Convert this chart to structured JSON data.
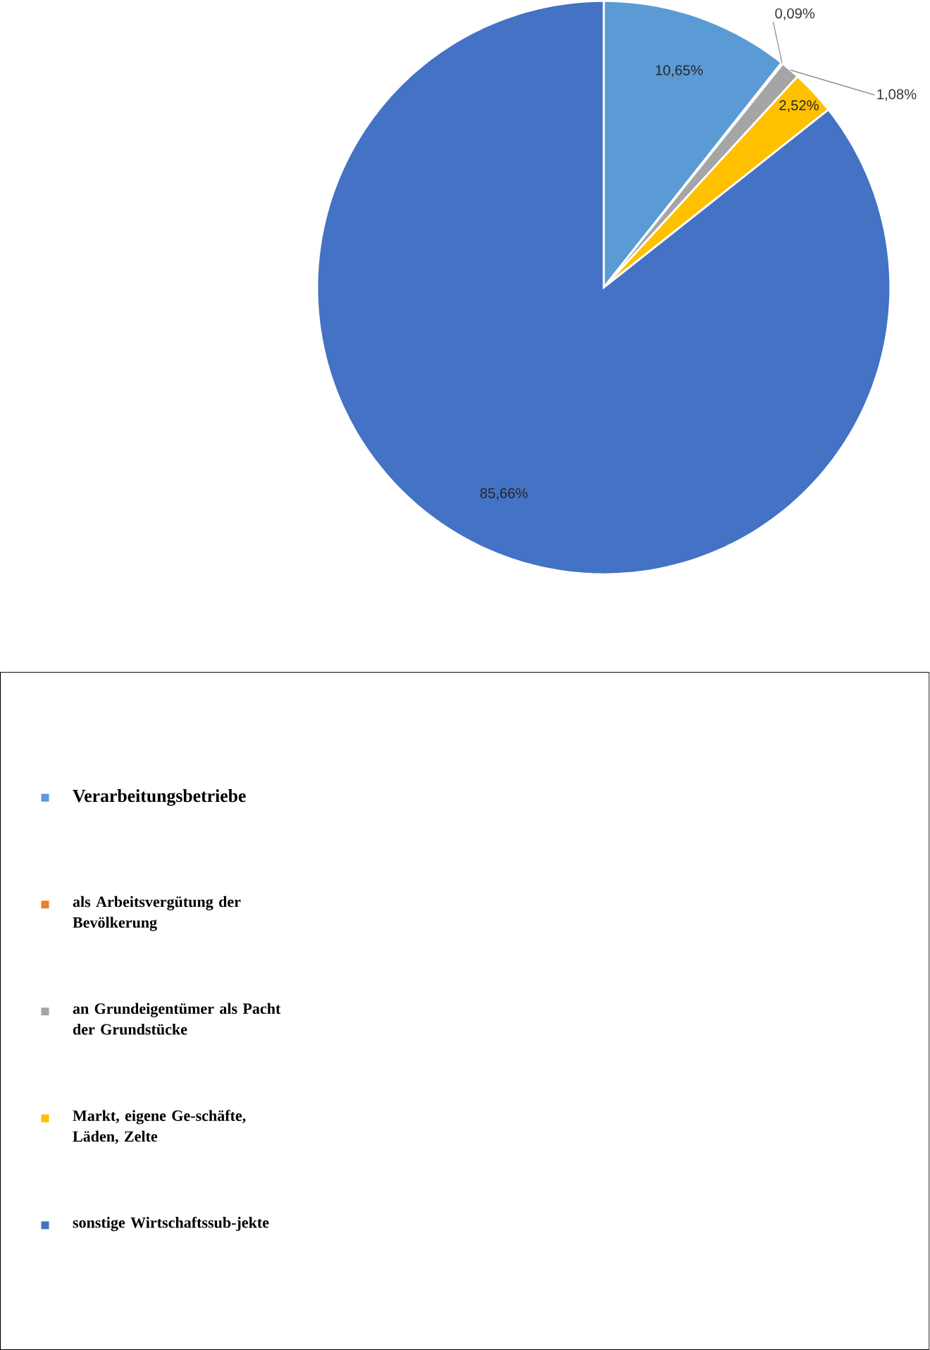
{
  "chart_data": {
    "type": "pie",
    "categories": [
      "Verarbeitungsbetriebe",
      "als Arbeitsvergütung der Bevölkerung",
      "an Grundeigentümer als Pacht der Grundstücke",
      "Markt, eigene Ge-schäfte, Läden, Zelte",
      "sonstige Wirtschaftssub-jekte"
    ],
    "values": [
      10.65,
      0.09,
      1.08,
      2.52,
      85.66
    ],
    "colors": [
      "#5b9bd5",
      "#ed7d31",
      "#a5a5a5",
      "#ffc000",
      "#4472c4"
    ],
    "value_labels": [
      "10,65%",
      "0,09%",
      "1,08%",
      "2,52%",
      "85,66%"
    ],
    "legend": "left"
  }
}
